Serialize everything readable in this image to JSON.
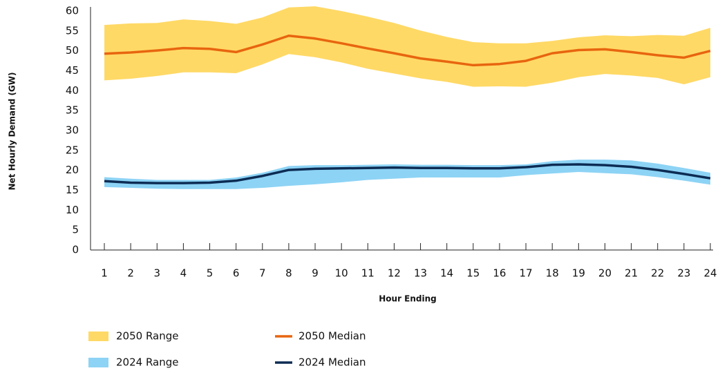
{
  "chart_data": {
    "type": "line",
    "x_label": "Hour Ending",
    "y_label": "Net Hourly Demand (GW)",
    "categories": [
      "1",
      "2",
      "3",
      "4",
      "5",
      "6",
      "7",
      "8",
      "9",
      "10",
      "11",
      "12",
      "13",
      "14",
      "15",
      "16",
      "17",
      "18",
      "19",
      "20",
      "21",
      "22",
      "23",
      "24"
    ],
    "ylim": [
      0,
      60
    ],
    "yticks": [
      0,
      5,
      10,
      15,
      20,
      25,
      30,
      35,
      40,
      45,
      50,
      55,
      60
    ],
    "series": [
      {
        "name": "2050 Range",
        "style": "range",
        "color": "#ffd966",
        "high": [
          56.5,
          56.9,
          57.0,
          57.9,
          57.5,
          56.8,
          58.4,
          60.9,
          61.2,
          60.0,
          58.6,
          57.0,
          55.1,
          53.5,
          52.2,
          51.9,
          51.9,
          52.5,
          53.4,
          53.9,
          53.7,
          54.0,
          53.8,
          55.8
        ],
        "low": [
          42.6,
          43.0,
          43.7,
          44.6,
          44.6,
          44.4,
          46.6,
          49.2,
          48.4,
          47.1,
          45.5,
          44.3,
          43.1,
          42.2,
          41.0,
          41.1,
          41.0,
          42.0,
          43.4,
          44.2,
          43.8,
          43.2,
          41.6,
          43.4
        ]
      },
      {
        "name": "2050 Median",
        "style": "line",
        "color": "#e8650f",
        "values": [
          49.3,
          49.6,
          50.1,
          50.7,
          50.5,
          49.7,
          51.6,
          53.8,
          53.1,
          51.9,
          50.6,
          49.4,
          48.1,
          47.3,
          46.4,
          46.7,
          47.5,
          49.4,
          50.2,
          50.4,
          49.7,
          48.9,
          48.3,
          50.0
        ]
      },
      {
        "name": "2024 Range",
        "style": "range",
        "color": "#8dd3f5",
        "high": [
          18.3,
          17.9,
          17.6,
          17.6,
          17.6,
          18.2,
          19.4,
          21.1,
          21.3,
          21.3,
          21.4,
          21.5,
          21.4,
          21.4,
          21.3,
          21.3,
          21.5,
          22.3,
          22.7,
          22.7,
          22.5,
          21.7,
          20.6,
          19.4
        ],
        "low": [
          15.8,
          15.6,
          15.4,
          15.3,
          15.3,
          15.3,
          15.6,
          16.1,
          16.5,
          17.0,
          17.6,
          17.9,
          18.2,
          18.2,
          18.2,
          18.2,
          18.8,
          19.2,
          19.6,
          19.3,
          19.0,
          18.3,
          17.4,
          16.4
        ]
      },
      {
        "name": "2024 Median",
        "style": "line",
        "color": "#0d2c54",
        "values": [
          17.3,
          16.9,
          16.8,
          16.8,
          16.9,
          17.4,
          18.6,
          20.1,
          20.4,
          20.5,
          20.6,
          20.7,
          20.6,
          20.6,
          20.5,
          20.5,
          20.8,
          21.4,
          21.5,
          21.3,
          20.9,
          20.1,
          19.1,
          18.0
        ]
      }
    ]
  }
}
